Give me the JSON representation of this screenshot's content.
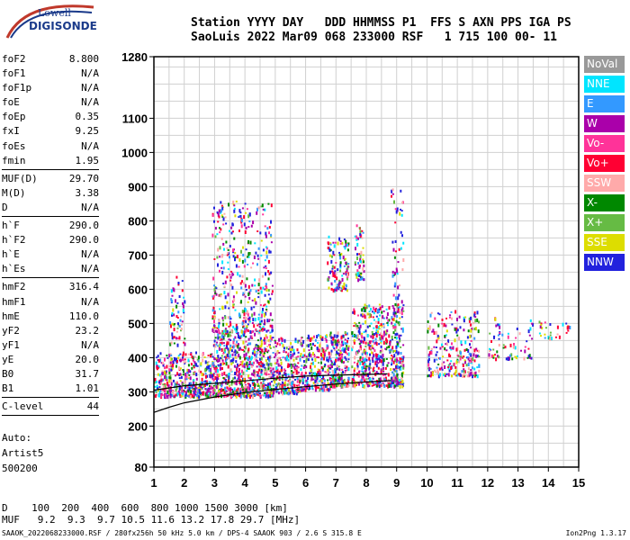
{
  "logo": {
    "line1": "Lowell",
    "line2": "DIGISONDE"
  },
  "header": {
    "line1": "Station YYYY DAY   DDD HHMMSS P1  FFS S AXN PPS IGA PS",
    "line2": "SaoLuis 2022 Mar09 068 233000 RSF   1 715 100 00- 11"
  },
  "params": [
    {
      "name": "foF2",
      "value": "8.800"
    },
    {
      "name": "foF1",
      "value": "N/A"
    },
    {
      "name": "foF1p",
      "value": "N/A"
    },
    {
      "name": "foE",
      "value": "N/A"
    },
    {
      "name": "foEp",
      "value": "0.35"
    },
    {
      "name": "fxI",
      "value": "9.25"
    },
    {
      "name": "foEs",
      "value": "N/A"
    },
    {
      "name": "fmin",
      "value": "1.95"
    },
    {
      "sep": true
    },
    {
      "name": "MUF(D)",
      "value": "29.70"
    },
    {
      "name": "M(D)",
      "value": "3.38"
    },
    {
      "name": "D",
      "value": "N/A"
    },
    {
      "sep": true
    },
    {
      "name": "h`F",
      "value": "290.0"
    },
    {
      "name": "h`F2",
      "value": "290.0"
    },
    {
      "name": "h`E",
      "value": "N/A"
    },
    {
      "name": "h`Es",
      "value": "N/A"
    },
    {
      "sep": true
    },
    {
      "name": "hmF2",
      "value": "316.4"
    },
    {
      "name": "hmF1",
      "value": "N/A"
    },
    {
      "name": "hmE",
      "value": "110.0"
    },
    {
      "name": "yF2",
      "value": "23.2"
    },
    {
      "name": "yF1",
      "value": "N/A"
    },
    {
      "name": "yE",
      "value": "20.0"
    },
    {
      "name": "B0",
      "value": "31.7"
    },
    {
      "name": "B1",
      "value": "1.01"
    },
    {
      "sep": true
    },
    {
      "name": "C-level",
      "value": "44"
    },
    {
      "sep": true
    }
  ],
  "auto": {
    "line1": "Auto:",
    "line2": "Artist5",
    "line3": "500200"
  },
  "legend": [
    {
      "label": "NoVal",
      "color": "#999999"
    },
    {
      "label": "NNE",
      "color": "#00e5ff"
    },
    {
      "label": "E",
      "color": "#3399ff"
    },
    {
      "label": "W",
      "color": "#aa00aa"
    },
    {
      "label": "Vo-",
      "color": "#ff3399"
    },
    {
      "label": "Vo+",
      "color": "#ff0033"
    },
    {
      "label": "SSW",
      "color": "#ffaaaa"
    },
    {
      "label": "X-",
      "color": "#008800"
    },
    {
      "label": "X+",
      "color": "#66bb44"
    },
    {
      "label": "SSE",
      "color": "#dddd00"
    },
    {
      "label": "NNW",
      "color": "#2222dd"
    }
  ],
  "bottom": {
    "drow": "D    100  200  400  600  800 1000 1500 3000 [km]",
    "mufrow": "MUF   9.2  9.3  9.7 10.5 11.6 13.2 17.8 29.7 [MHz]"
  },
  "footer": {
    "left": "SAAOK_2022068233000.RSF / 280fx256h 50 kHz 5.0 km / DPS-4 SAAOK 903 / 2.6 S 315.8 E",
    "right": "Ion2Png 1.3.17"
  },
  "chart_data": {
    "type": "scatter",
    "xlim": [
      1,
      15
    ],
    "ylim": [
      80,
      1280
    ],
    "x_ticks": [
      "1",
      "2",
      "3",
      "4",
      "5",
      "6",
      "7",
      "8",
      "9",
      "10",
      "11",
      "12",
      "13",
      "14",
      "15"
    ],
    "y_ticks": [
      {
        "value": 80,
        "label": "80"
      },
      {
        "value": 200,
        "label": "200"
      },
      {
        "value": 300,
        "label": "300"
      },
      {
        "value": 400,
        "label": "400"
      },
      {
        "value": 500,
        "label": "500"
      },
      {
        "value": 600,
        "label": "600"
      },
      {
        "value": 700,
        "label": "700"
      },
      {
        "value": 800,
        "label": "800"
      },
      {
        "value": 900,
        "label": "900"
      },
      {
        "value": 1000,
        "label": "1000"
      },
      {
        "value": 1100,
        "label": "1100"
      },
      {
        "value": 1280,
        "label": "1280"
      }
    ],
    "grid": true,
    "profile_lower": [
      [
        1,
        240
      ],
      [
        1.5,
        255
      ],
      [
        2,
        268
      ],
      [
        3,
        285
      ],
      [
        4,
        298
      ],
      [
        5,
        307
      ],
      [
        6,
        315
      ],
      [
        7,
        323
      ],
      [
        8,
        329
      ],
      [
        8.8,
        333
      ]
    ],
    "profile_upper": [
      [
        1,
        305
      ],
      [
        2,
        318
      ],
      [
        3,
        325
      ],
      [
        4,
        332
      ],
      [
        5,
        340
      ],
      [
        6,
        346
      ],
      [
        7,
        349
      ],
      [
        8,
        351
      ],
      [
        8.7,
        353
      ]
    ],
    "echo_regions": [
      {
        "f": [
          1.0,
          2.9
        ],
        "h": [
          290,
          420
        ],
        "n": 450
      },
      {
        "f": [
          1.5,
          2.0
        ],
        "h": [
          440,
          640
        ],
        "n": 60
      },
      {
        "f": [
          2.9,
          4.9
        ],
        "h": [
          290,
          480
        ],
        "n": 650
      },
      {
        "f": [
          2.9,
          4.9
        ],
        "h": [
          480,
          860
        ],
        "n": 420
      },
      {
        "f": [
          4.9,
          5.8
        ],
        "h": [
          300,
          460
        ],
        "n": 260
      },
      {
        "f": [
          5.8,
          6.8
        ],
        "h": [
          310,
          470
        ],
        "n": 240
      },
      {
        "f": [
          6.8,
          7.4
        ],
        "h": [
          320,
          480
        ],
        "n": 220
      },
      {
        "f": [
          6.7,
          7.4
        ],
        "h": [
          600,
          760
        ],
        "n": 120
      },
      {
        "f": [
          7.5,
          9.2
        ],
        "h": [
          320,
          560
        ],
        "n": 520
      },
      {
        "f": [
          7.6,
          7.9
        ],
        "h": [
          630,
          790
        ],
        "n": 60
      },
      {
        "f": [
          8.8,
          9.2
        ],
        "h": [
          330,
          900
        ],
        "n": 120
      },
      {
        "f": [
          10.0,
          11.7
        ],
        "h": [
          350,
          540
        ],
        "n": 260
      },
      {
        "f": [
          12.0,
          13.5
        ],
        "h": [
          400,
          520
        ],
        "n": 70
      },
      {
        "f": [
          13.6,
          14.8
        ],
        "h": [
          460,
          510
        ],
        "n": 30
      }
    ]
  }
}
